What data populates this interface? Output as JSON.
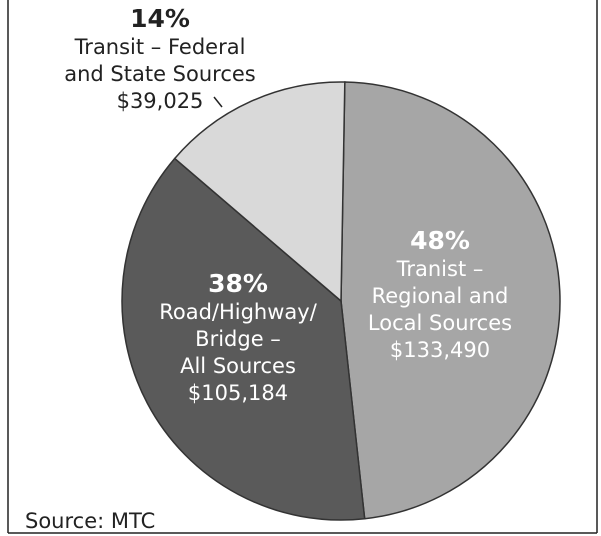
{
  "chart_data": {
    "type": "pie",
    "categories": [
      [
        "Tranist –",
        "Regional and",
        "Local Sources"
      ],
      [
        "Road/Highway/",
        "Bridge –",
        "All Sources"
      ],
      [
        "Transit – Federal",
        "and State Sources"
      ]
    ],
    "values": [
      48,
      38,
      14
    ],
    "value_labels": [
      "48%",
      "38%",
      "14%"
    ],
    "amount_labels": [
      "$133,490",
      "$105,184",
      "$39,025"
    ],
    "colors": [
      "#a6a6a6",
      "#5a5a5a",
      "#d9d9d9"
    ],
    "source": "Source: MTC"
  }
}
